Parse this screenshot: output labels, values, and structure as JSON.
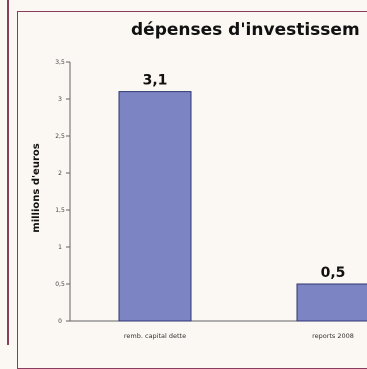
{
  "chart_data": {
    "type": "bar",
    "title": "dépenses d'investissem",
    "xlabel": "",
    "ylabel": "millions d'euros",
    "categories": [
      "remb. capital dette",
      "reports 2008"
    ],
    "values": [
      3.1,
      0.5
    ],
    "data_labels": [
      "3,1",
      "0,5"
    ],
    "ylim": [
      0,
      3.5
    ],
    "yticks": [
      {
        "value": 0,
        "label": "0"
      },
      {
        "value": 0.5,
        "label": "0,5"
      },
      {
        "value": 1,
        "label": "1"
      },
      {
        "value": 1.5,
        "label": "1,5"
      },
      {
        "value": 2,
        "label": "2"
      },
      {
        "value": 2.5,
        "label": "2,5"
      },
      {
        "value": 3,
        "label": "3"
      },
      {
        "value": 3.5,
        "label": "3,5"
      }
    ],
    "grid": false,
    "bar_color": "#7c84c4",
    "bar_edge_color": "#2c3470"
  }
}
